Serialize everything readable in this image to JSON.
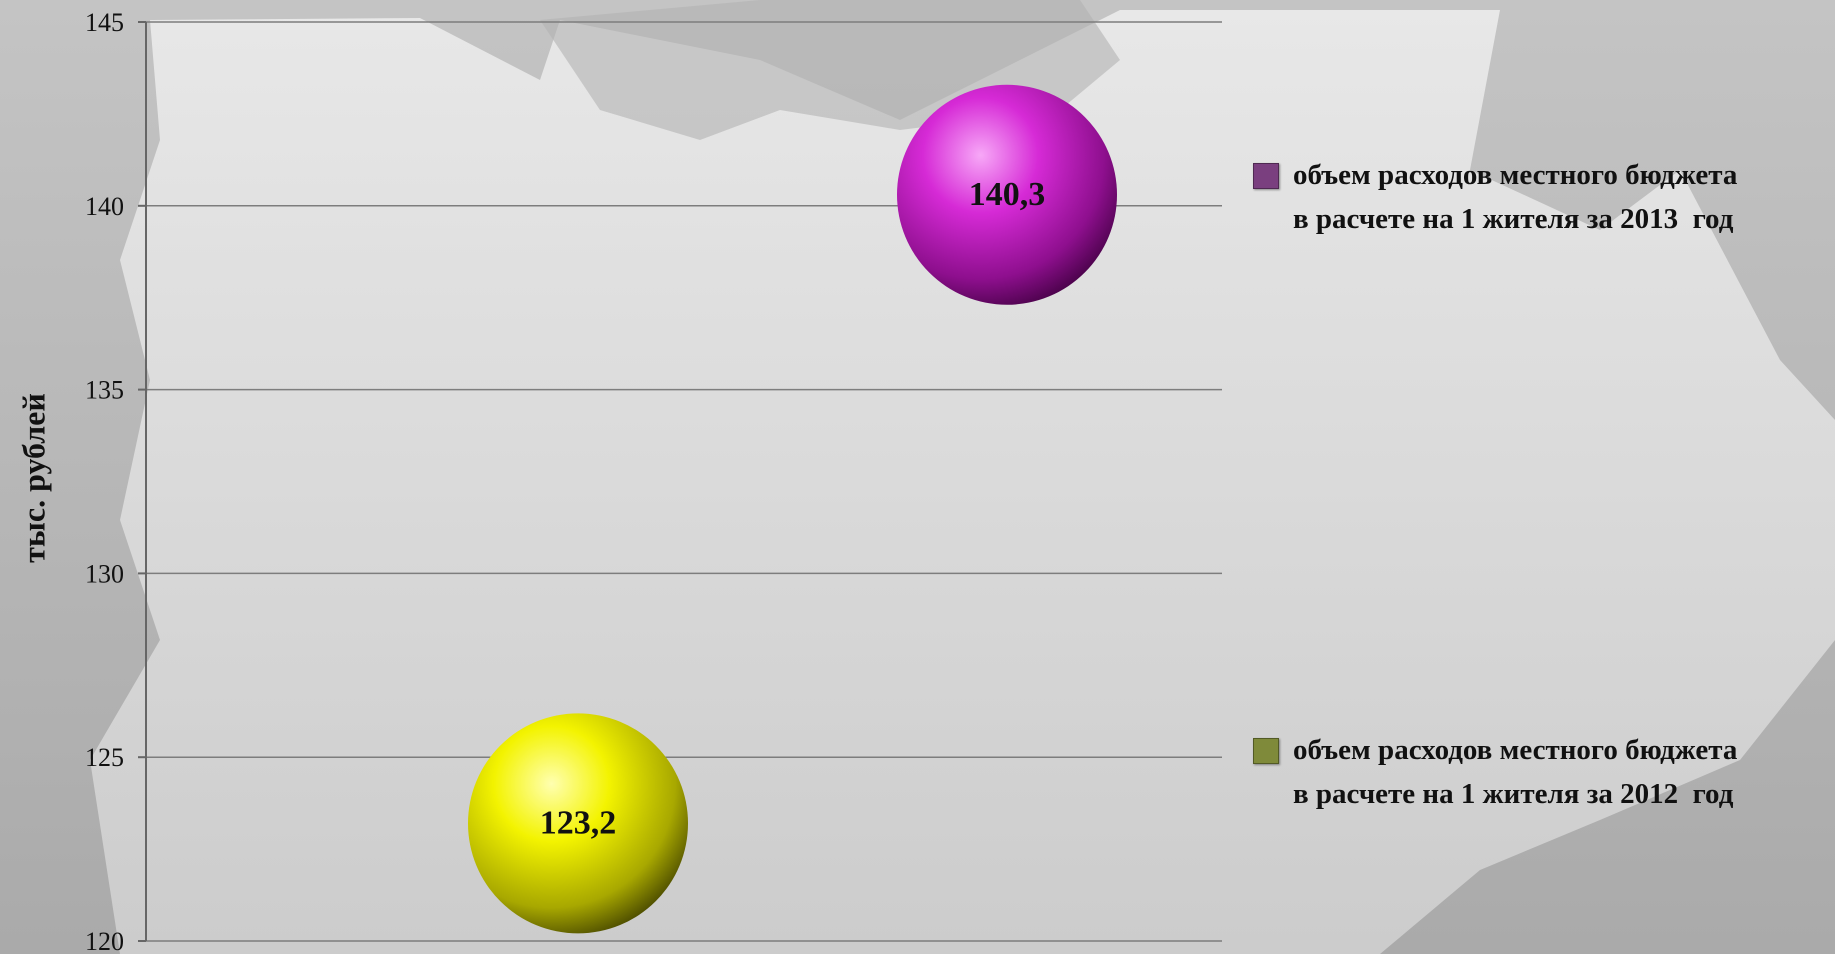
{
  "chart_data": {
    "type": "scatter",
    "title": "",
    "xlabel": "",
    "ylabel": "тыс. рублей",
    "ylim": [
      120,
      145
    ],
    "yticks": [
      "145",
      "140",
      "135",
      "130",
      "125",
      "120"
    ],
    "grid": true,
    "legend_position": "right",
    "series": [
      {
        "name": "объем расходов местного бюджета\nв расчете на 1 жителя за 2013  год",
        "x": 2,
        "value": 140.3,
        "label": "140,3",
        "color": "#cc00cc",
        "legend_color": "#7a3f7f"
      },
      {
        "name": "объем расходов местного бюджета\nв расчете на 1 жителя за 2012  год",
        "x": 1,
        "value": 123.2,
        "label": "123,2",
        "color": "#f2f200",
        "legend_color": "#7f8a3a"
      }
    ]
  }
}
